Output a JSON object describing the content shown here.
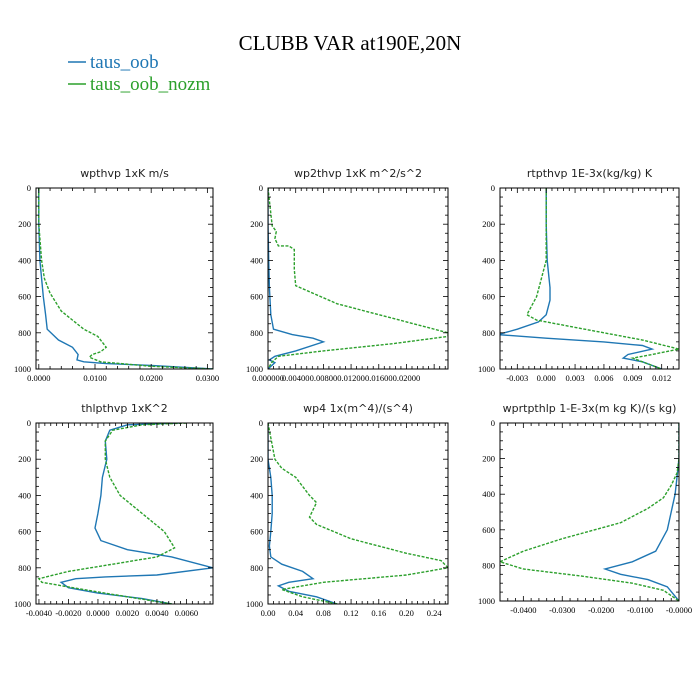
{
  "figure": {
    "title": "CLUBB VAR at190E,20N",
    "legend": [
      {
        "name": "taus_oob",
        "color": "#1f77b4"
      },
      {
        "name": "taus_oob_nozm",
        "color": "#2ca02c"
      }
    ]
  },
  "chart_data": [
    {
      "type": "line",
      "title": "wpthvp   1xK m/s",
      "xlim": [
        -0.0005,
        0.031
      ],
      "ylim": [
        1000,
        0
      ],
      "xticks": [
        0.0,
        0.01,
        0.02,
        0.03
      ],
      "xtick_labels": [
        "0.0000",
        "0.0100",
        "0.0200",
        "0.0300"
      ],
      "yticks": [
        0,
        200,
        400,
        600,
        800,
        1000
      ],
      "series": [
        {
          "name": "taus_oob",
          "color": "#1f77b4",
          "x": [
            0.0,
            0.0,
            0.0002,
            0.0005,
            0.0008,
            0.0012,
            0.0015,
            0.0035,
            0.006,
            0.007,
            0.0068,
            0.008,
            0.012,
            0.02,
            0.031
          ],
          "y": [
            0,
            200,
            400,
            500,
            600,
            700,
            780,
            840,
            880,
            920,
            950,
            960,
            970,
            980,
            1000
          ]
        },
        {
          "name": "taus_oob_nozm",
          "color": "#2ca02c",
          "dashed": true,
          "x": [
            0.0,
            0.0,
            0.0005,
            0.001,
            0.002,
            0.004,
            0.008,
            0.0105,
            0.012,
            0.011,
            0.0095,
            0.009,
            0.011,
            0.02,
            0.031
          ],
          "y": [
            0,
            200,
            400,
            500,
            580,
            680,
            780,
            820,
            880,
            905,
            920,
            935,
            960,
            985,
            1000
          ]
        }
      ]
    },
    {
      "type": "line",
      "title": "wp2thvp   1xK m^2/s^2",
      "xlim": [
        0.0,
        0.026
      ],
      "ylim": [
        1000,
        0
      ],
      "xticks": [
        0.0,
        0.004,
        0.008,
        0.012,
        0.016,
        0.02
      ],
      "xtick_labels": [
        "0.000000",
        "0.00400",
        "0.00800",
        "0.01200",
        "0.01600",
        "0.02000"
      ],
      "yticks": [
        0,
        200,
        400,
        600,
        800,
        1000
      ],
      "series": [
        {
          "name": "taus_oob",
          "color": "#1f77b4",
          "x": [
            0.0,
            0.0,
            0.0001,
            0.0002,
            0.0004,
            0.0008,
            0.0035,
            0.0065,
            0.008,
            0.004,
            0.001,
            0.0002,
            0.001,
            0.0
          ],
          "y": [
            0,
            200,
            400,
            550,
            700,
            780,
            810,
            830,
            850,
            900,
            930,
            950,
            965,
            1000
          ]
        },
        {
          "name": "taus_oob_nozm",
          "color": "#2ca02c",
          "dashed": true,
          "x": [
            0.0,
            0.0006,
            0.0012,
            0.001,
            0.0015,
            0.003,
            0.0038,
            0.0038,
            0.004,
            0.01,
            0.02,
            0.026,
            0.026,
            0.018,
            0.008,
            0.0015,
            0.0005,
            0.0
          ],
          "y": [
            0,
            210,
            240,
            280,
            320,
            320,
            340,
            450,
            540,
            640,
            740,
            800,
            820,
            860,
            900,
            930,
            965,
            1000
          ]
        }
      ]
    },
    {
      "type": "line",
      "title": "rtpthvp   1E-3x(kg/kg) K",
      "xlim": [
        -0.0048,
        0.0138
      ],
      "ylim": [
        1000,
        0
      ],
      "xticks": [
        -0.003,
        0.0,
        0.003,
        0.006,
        0.009,
        0.012
      ],
      "xtick_labels": [
        "-0.003",
        "0.000",
        "0.003",
        "0.006",
        "0.009",
        "0.012"
      ],
      "yticks": [
        0,
        200,
        400,
        600,
        800,
        1000
      ],
      "series": [
        {
          "name": "taus_oob",
          "color": "#1f77b4",
          "x": [
            0.0,
            0.0,
            0.0001,
            0.0004,
            0.0004,
            0.0,
            -0.0008,
            -0.003,
            -0.005,
            0.0,
            0.006,
            0.01,
            0.011,
            0.0085,
            0.008,
            0.01,
            0.012
          ],
          "y": [
            0,
            200,
            400,
            550,
            620,
            700,
            740,
            780,
            810,
            830,
            850,
            870,
            890,
            920,
            940,
            960,
            1000
          ]
        },
        {
          "name": "taus_oob_nozm",
          "color": "#2ca02c",
          "dashed": true,
          "x": [
            0.0,
            0.0,
            0.0,
            -0.001,
            -0.002,
            -0.001,
            0.004,
            0.01,
            0.0138,
            0.011,
            0.009,
            0.01,
            0.012
          ],
          "y": [
            0,
            200,
            400,
            600,
            700,
            730,
            780,
            840,
            890,
            920,
            940,
            960,
            1000
          ]
        }
      ]
    },
    {
      "type": "line",
      "title": "thlpthvp   1xK^2",
      "xlim": [
        -0.0042,
        0.0078
      ],
      "ylim": [
        1000,
        0
      ],
      "xticks": [
        -0.004,
        -0.002,
        0.0,
        0.002,
        0.004,
        0.006
      ],
      "xtick_labels": [
        "-0.0040",
        "-0.0020",
        "0.0000",
        "0.0020",
        "0.0040",
        "0.0060"
      ],
      "yticks": [
        0,
        200,
        400,
        600,
        800,
        1000
      ],
      "series": [
        {
          "name": "taus_oob",
          "color": "#1f77b4",
          "x": [
            0.0055,
            0.002,
            0.0008,
            0.0005,
            0.0006,
            0.0003,
            0.0002,
            0.0,
            -0.0002,
            0.0002,
            0.002,
            0.005,
            0.0078,
            0.004,
            0.0005,
            -0.0015,
            -0.0025,
            -0.002,
            0.0,
            0.003,
            0.005
          ],
          "y": [
            0,
            10,
            40,
            100,
            200,
            300,
            400,
            500,
            580,
            650,
            700,
            740,
            800,
            840,
            850,
            860,
            880,
            910,
            940,
            970,
            1000
          ]
        },
        {
          "name": "taus_oob_nozm",
          "color": "#2ca02c",
          "dashed": true,
          "x": [
            0.006,
            0.003,
            0.001,
            0.0005,
            0.0005,
            0.0008,
            0.0015,
            0.003,
            0.0045,
            0.0052,
            0.004,
            0.001,
            -0.002,
            -0.004,
            -0.0038,
            -0.001,
            0.002,
            0.005
          ],
          "y": [
            0,
            10,
            40,
            100,
            200,
            300,
            400,
            500,
            600,
            690,
            740,
            780,
            820,
            860,
            880,
            920,
            960,
            1000
          ]
        }
      ]
    },
    {
      "type": "line",
      "title": "wp4   1x(m^4)/(s^4)",
      "xlim": [
        0.0,
        0.26
      ],
      "ylim": [
        1000,
        0
      ],
      "xticks": [
        0.0,
        0.04,
        0.08,
        0.12,
        0.16,
        0.2,
        0.24
      ],
      "xtick_labels": [
        "0.00",
        "0.04",
        "0.08",
        "0.12",
        "0.16",
        "0.20",
        "0.24"
      ],
      "yticks": [
        0,
        200,
        400,
        600,
        800,
        1000
      ],
      "series": [
        {
          "name": "taus_oob",
          "color": "#1f77b4",
          "x": [
            0.0,
            0.0,
            0.004,
            0.006,
            0.006,
            0.004,
            0.002,
            0.004,
            0.02,
            0.05,
            0.065,
            0.03,
            0.015,
            0.03,
            0.07,
            0.1
          ],
          "y": [
            0,
            200,
            300,
            400,
            500,
            600,
            680,
            740,
            780,
            820,
            860,
            880,
            900,
            930,
            960,
            1000
          ]
        },
        {
          "name": "taus_oob_nozm",
          "color": "#2ca02c",
          "dashed": true,
          "x": [
            0.0,
            0.01,
            0.02,
            0.04,
            0.05,
            0.06,
            0.07,
            0.065,
            0.06,
            0.07,
            0.12,
            0.2,
            0.25,
            0.26,
            0.2,
            0.08,
            0.02,
            0.05,
            0.1
          ],
          "y": [
            0,
            200,
            250,
            300,
            350,
            400,
            440,
            480,
            520,
            560,
            640,
            720,
            760,
            800,
            840,
            880,
            920,
            960,
            1000
          ]
        }
      ]
    },
    {
      "type": "line",
      "title": "wprtpthlp   1-E-3x(m kg K)/(s kg)",
      "xlim": [
        -0.046,
        0.0
      ],
      "ylim": [
        1000,
        0
      ],
      "xticks": [
        -0.04,
        -0.03,
        -0.02,
        -0.01,
        0.0
      ],
      "xtick_labels": [
        "-0.0400",
        "-0.0300",
        "-0.0200",
        "-0.0100",
        "-0.0000"
      ],
      "yticks": [
        0,
        200,
        400,
        600,
        800,
        1000
      ],
      "series": [
        {
          "name": "taus_oob",
          "color": "#1f77b4",
          "x": [
            0.0,
            0.0,
            -0.0005,
            -0.001,
            -0.002,
            -0.003,
            -0.006,
            -0.012,
            -0.019,
            -0.015,
            -0.008,
            -0.003,
            0.0
          ],
          "y": [
            0,
            200,
            300,
            400,
            500,
            600,
            720,
            780,
            820,
            850,
            880,
            920,
            1000
          ]
        },
        {
          "name": "taus_oob_nozm",
          "color": "#2ca02c",
          "dashed": true,
          "x": [
            0.0,
            0.0,
            -0.0005,
            -0.002,
            -0.004,
            -0.008,
            -0.015,
            -0.03,
            -0.04,
            -0.046,
            -0.04,
            -0.025,
            -0.012,
            -0.004,
            0.0
          ],
          "y": [
            0,
            200,
            280,
            350,
            420,
            480,
            560,
            650,
            720,
            780,
            820,
            860,
            900,
            940,
            1000
          ]
        }
      ]
    }
  ]
}
